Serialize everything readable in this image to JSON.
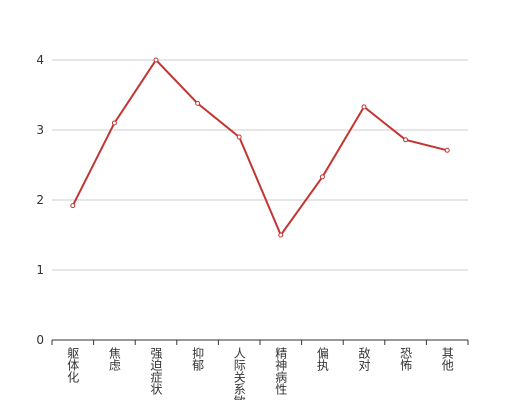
{
  "chart_data": {
    "type": "line",
    "categories": [
      "躯体化",
      "焦虑",
      "强迫症状",
      "抑郁",
      "人际关系敏感",
      "精神病性",
      "偏执",
      "敌对",
      "恐怖",
      "其他"
    ],
    "series": [
      {
        "color": "#c23531",
        "values": [
          1.92,
          3.1,
          4.0,
          3.38,
          2.9,
          1.5,
          2.33,
          3.33,
          2.86,
          2.71
        ]
      }
    ],
    "ylim": [
      0,
      4
    ],
    "yticks": [
      0,
      1,
      2,
      3,
      4
    ],
    "grid": true
  }
}
